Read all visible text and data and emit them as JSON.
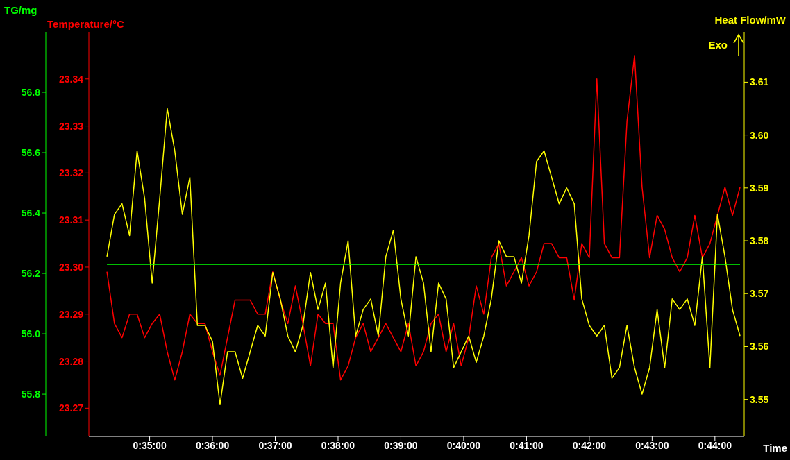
{
  "chart_data": {
    "type": "line",
    "xlabel": "Time",
    "ylabel": "Temperature/°C",
    "y2label": "TG/mg",
    "y3label": "Heat Flow/mW",
    "annotations": [
      "Exo"
    ],
    "x": [
      0.572,
      0.574,
      0.576,
      0.578,
      0.58,
      0.582,
      0.584,
      0.586,
      0.588,
      0.59,
      0.592,
      0.594,
      0.596,
      0.598,
      0.6,
      0.602,
      0.604,
      0.606,
      0.608,
      0.61,
      0.612,
      0.614,
      0.616,
      0.618,
      0.62,
      0.622,
      0.624,
      0.626,
      0.628,
      0.63,
      0.632,
      0.634,
      0.636,
      0.638,
      0.64,
      0.642,
      0.644,
      0.646,
      0.648,
      0.65,
      0.652,
      0.654,
      0.656,
      0.658,
      0.66,
      0.662,
      0.664,
      0.666,
      0.668,
      0.67,
      0.672,
      0.674,
      0.676,
      0.678,
      0.68,
      0.682,
      0.684,
      0.686,
      0.688,
      0.69,
      0.692,
      0.694,
      0.696,
      0.698,
      0.7,
      0.702,
      0.704,
      0.706,
      0.708,
      0.71,
      0.712,
      0.714,
      0.716,
      0.718,
      0.72,
      0.722,
      0.724,
      0.726,
      0.728,
      0.73,
      0.732,
      0.734,
      0.736,
      0.738,
      0.74
    ],
    "series": [
      {
        "color": "#ff0000",
        "axis": "y",
        "values": [
          23.299,
          23.288,
          23.285,
          23.29,
          23.29,
          23.285,
          23.288,
          23.29,
          23.282,
          23.276,
          23.282,
          23.29,
          23.288,
          23.288,
          23.282,
          23.277,
          23.285,
          23.293,
          23.293,
          23.293,
          23.29,
          23.29,
          23.299,
          23.293,
          23.288,
          23.296,
          23.288,
          23.279,
          23.29,
          23.288,
          23.288,
          23.276,
          23.279,
          23.285,
          23.288,
          23.282,
          23.285,
          23.288,
          23.285,
          23.282,
          23.288,
          23.279,
          23.282,
          23.288,
          23.29,
          23.282,
          23.288,
          23.279,
          23.285,
          23.296,
          23.29,
          23.302,
          23.305,
          23.296,
          23.299,
          23.302,
          23.296,
          23.299,
          23.305,
          23.305,
          23.302,
          23.302,
          23.293,
          23.305,
          23.302,
          23.34,
          23.305,
          23.302,
          23.302,
          23.331,
          23.345,
          23.317,
          23.302,
          23.311,
          23.308,
          23.302,
          23.299,
          23.302,
          23.311,
          23.302,
          23.305,
          23.311,
          23.317,
          23.311,
          23.317
        ]
      },
      {
        "color": "#ffff00",
        "axis": "y3",
        "values": [
          3.577,
          3.585,
          3.587,
          3.581,
          3.597,
          3.588,
          3.572,
          3.588,
          3.605,
          3.597,
          3.585,
          3.592,
          3.564,
          3.564,
          3.561,
          3.549,
          3.559,
          3.559,
          3.554,
          3.559,
          3.564,
          3.562,
          3.574,
          3.569,
          3.562,
          3.559,
          3.564,
          3.574,
          3.567,
          3.572,
          3.556,
          3.572,
          3.58,
          3.562,
          3.567,
          3.569,
          3.562,
          3.577,
          3.582,
          3.569,
          3.562,
          3.577,
          3.572,
          3.559,
          3.572,
          3.569,
          3.556,
          3.559,
          3.562,
          3.557,
          3.562,
          3.569,
          3.58,
          3.577,
          3.577,
          3.572,
          3.581,
          3.595,
          3.597,
          3.592,
          3.587,
          3.59,
          3.587,
          3.569,
          3.564,
          3.562,
          3.564,
          3.554,
          3.556,
          3.564,
          3.556,
          3.551,
          3.556,
          3.567,
          3.556,
          3.569,
          3.567,
          3.569,
          3.564,
          3.577,
          3.556,
          3.585,
          3.577,
          3.567,
          3.562
        ]
      },
      {
        "color": "#00ff00",
        "axis": "y2",
        "x": [
          0.572,
          0.74
        ],
        "values": [
          56.23,
          56.23
        ]
      }
    ],
    "xlim": [
      0.5672,
      0.7411
    ],
    "xticks": [
      {
        "value": 0.583333,
        "label": "0:35:00"
      },
      {
        "value": 0.6,
        "label": "0:36:00"
      },
      {
        "value": 0.616667,
        "label": "0:37:00"
      },
      {
        "value": 0.633333,
        "label": "0:38:00"
      },
      {
        "value": 0.65,
        "label": "0:39:00"
      },
      {
        "value": 0.666667,
        "label": "0:40:00"
      },
      {
        "value": 0.683333,
        "label": "0:41:00"
      },
      {
        "value": 0.7,
        "label": "0:42:00"
      },
      {
        "value": 0.716667,
        "label": "0:43:00"
      },
      {
        "value": 0.733333,
        "label": "0:44:00"
      }
    ],
    "ylim": [
      23.264,
      23.35
    ],
    "yticks": [
      23.27,
      23.28,
      23.29,
      {
        "value": 23.3,
        "label": "23.30"
      },
      23.31,
      23.32,
      23.33,
      23.34
    ],
    "y2lim": [
      55.66,
      57.0
    ],
    "y2ticks": [
      55.8,
      {
        "value": 56,
        "label": "56.0"
      },
      56.2,
      56.4,
      56.6,
      56.8
    ],
    "y3lim": [
      3.543,
      3.6195
    ],
    "y3ticks": [
      3.55,
      3.56,
      3.57,
      3.58,
      3.59,
      {
        "value": 3.6,
        "label": "3.60"
      },
      3.61
    ]
  }
}
